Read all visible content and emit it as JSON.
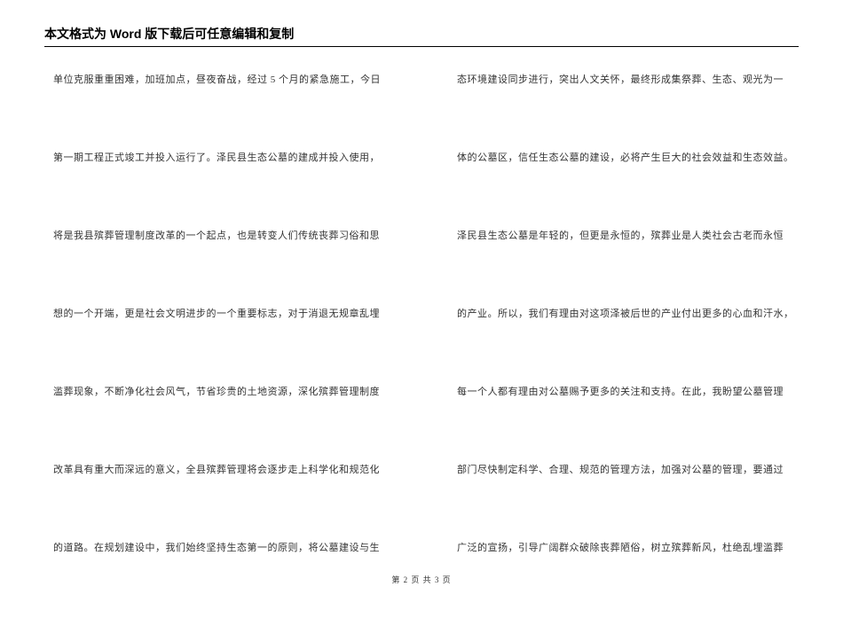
{
  "header": {
    "title": "本文格式为 Word 版下载后可任意编辑和复制"
  },
  "document": {
    "font_family": "SimSun",
    "text_color": "#333333",
    "background_color": "#ffffff",
    "border_color": "#000000",
    "font_size_body": 11,
    "font_size_header": 14,
    "font_size_footer": 9,
    "line_spacing": 72,
    "column_gap": 60
  },
  "left_column": {
    "lines": [
      "单位克服重重困难，加班加点，昼夜奋战，经过 5 个月的紧急施工，今日",
      "第一期工程正式竣工并投入运行了。泽民县生态公墓的建成并投入使用，",
      "将是我县殡葬管理制度改革的一个起点，也是转变人们传统丧葬习俗和思",
      "想的一个开端，更是社会文明进步的一个重要标志，对于消退无规章乱埋",
      "滥葬现象，不断净化社会风气，节省珍贵的土地资源，深化殡葬管理制度",
      "改革具有重大而深远的意义，全县殡葬管理将会逐步走上科学化和规范化",
      "的道路。在规划建设中，我们始终坚持生态第一的原则，将公墓建设与生"
    ]
  },
  "right_column": {
    "lines": [
      "态环境建设同步进行，突出人文关怀，最终形成集祭葬、生态、观光为一",
      "体的公墓区，信任生态公墓的建设，必将产生巨大的社会效益和生态效益。",
      "泽民县生态公墓是年轻的，但更是永恒的，殡葬业是人类社会古老而永恒",
      "的产业。所以，我们有理由对这项泽被后世的产业付出更多的心血和汗水，",
      "每一个人都有理由对公墓赐予更多的关注和支持。在此，我盼望公墓管理",
      "部门尽快制定科学、合理、规范的管理方法，加强对公墓的管理，要通过",
      "广泛的宣扬，引导广阔群众破除丧葬陋俗，树立殡葬新风，杜绝乱埋滥葬"
    ]
  },
  "footer": {
    "text": "第 2 页 共 3 页"
  }
}
